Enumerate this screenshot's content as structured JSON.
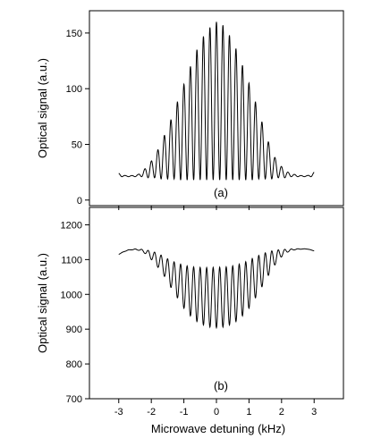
{
  "figure": {
    "background": "#ffffff",
    "line_color": "#000000"
  },
  "chart_data": [
    {
      "type": "line",
      "panel_label": "(a)",
      "xlabel": "",
      "ylabel": "Optical signal (a.u.)",
      "xlim": [
        -3.9,
        3.9
      ],
      "ylim": [
        -5,
        170
      ],
      "xticks": [
        -3,
        -2,
        -1,
        0,
        1,
        2,
        3
      ],
      "xtick_labels": [],
      "yticks": [
        0,
        50,
        100,
        150
      ],
      "ytick_labels": [
        "0",
        "50",
        "100",
        "150"
      ],
      "grid": false,
      "legend": "none",
      "x_range": [
        -3,
        3
      ],
      "series": [
        {
          "description": "Ramsey fringes, maxima",
          "x": [
            -3.0,
            -2.8,
            -2.6,
            -2.4,
            -2.2,
            -2.0,
            -1.8,
            -1.6,
            -1.4,
            -1.2,
            -1.0,
            -0.8,
            -0.6,
            -0.4,
            -0.2,
            0.0,
            0.2,
            0.4,
            0.6,
            0.8,
            1.0,
            1.2,
            1.4,
            1.6,
            1.8,
            2.0,
            2.2,
            2.4,
            2.6,
            2.8,
            3.0
          ],
          "y": [
            24,
            22,
            22,
            23,
            28,
            35,
            45,
            58,
            72,
            88,
            104,
            120,
            135,
            147,
            155,
            160,
            157,
            148,
            136,
            121,
            105,
            88,
            70,
            52,
            38,
            30,
            25,
            23,
            22,
            22,
            25
          ]
        },
        {
          "description": "Ramsey fringes, minima",
          "x": [
            -2.9,
            -2.7,
            -2.5,
            -2.3,
            -2.1,
            -1.9,
            -1.7,
            -1.5,
            -1.3,
            -1.1,
            -0.9,
            -0.7,
            -0.5,
            -0.3,
            -0.1,
            0.1,
            0.3,
            0.5,
            0.7,
            0.9,
            1.1,
            1.3,
            1.5,
            1.7,
            1.9,
            2.1,
            2.3,
            2.5,
            2.7,
            2.9
          ],
          "y": [
            21,
            21,
            21,
            21,
            20,
            20,
            19,
            19,
            19,
            18,
            18,
            18,
            18,
            18,
            18,
            18,
            18,
            18,
            18,
            18,
            18,
            19,
            19,
            19,
            20,
            20,
            21,
            21,
            21,
            21
          ]
        }
      ]
    },
    {
      "type": "line",
      "panel_label": "(b)",
      "xlabel": "Microwave detuning (kHz)",
      "ylabel": "Optical signal (a.u.)",
      "xlim": [
        -3.9,
        3.9
      ],
      "ylim": [
        700,
        1250
      ],
      "xticks": [
        -3,
        -2,
        -1,
        0,
        1,
        2,
        3
      ],
      "xtick_labels": [
        "-3",
        "-2",
        "-1",
        "0",
        "1",
        "2",
        "3"
      ],
      "yticks": [
        700,
        800,
        900,
        1000,
        1100,
        1200
      ],
      "ytick_labels": [
        "700",
        "800",
        "900",
        "1000",
        "1100",
        "1200"
      ],
      "grid": false,
      "legend": "none",
      "x_range": [
        -3,
        3
      ],
      "series": [
        {
          "description": "Ramsey fringes, upper envelope",
          "x": [
            -3.0,
            -2.8,
            -2.6,
            -2.4,
            -2.2,
            -2.0,
            -1.8,
            -1.6,
            -1.4,
            -1.2,
            -1.0,
            -0.8,
            -0.6,
            -0.4,
            -0.2,
            0.0,
            0.2,
            0.4,
            0.6,
            0.8,
            1.0,
            1.2,
            1.4,
            1.6,
            1.8,
            2.0,
            2.2,
            2.4,
            2.6,
            2.8,
            3.0
          ],
          "y": [
            1115,
            1126,
            1130,
            1131,
            1128,
            1125,
            1118,
            1108,
            1097,
            1090,
            1084,
            1080,
            1078,
            1077,
            1077,
            1078,
            1078,
            1080,
            1084,
            1090,
            1098,
            1108,
            1116,
            1123,
            1127,
            1129,
            1130,
            1131,
            1131,
            1131,
            1125
          ]
        },
        {
          "description": "Ramsey fringes, lower envelope",
          "x": [
            -3.0,
            -2.8,
            -2.6,
            -2.4,
            -2.2,
            -2.0,
            -1.8,
            -1.6,
            -1.4,
            -1.2,
            -1.0,
            -0.8,
            -0.6,
            -0.4,
            -0.2,
            0.0,
            0.2,
            0.4,
            0.6,
            0.8,
            1.0,
            1.2,
            1.4,
            1.6,
            1.8,
            2.0,
            2.2,
            2.4,
            2.6,
            2.8,
            3.0
          ],
          "y": [
            1115,
            1124,
            1128,
            1127,
            1118,
            1100,
            1078,
            1052,
            1020,
            990,
            960,
            938,
            922,
            912,
            906,
            904,
            906,
            912,
            922,
            938,
            960,
            990,
            1022,
            1055,
            1085,
            1108,
            1122,
            1128,
            1130,
            1130,
            1125
          ]
        }
      ]
    }
  ]
}
